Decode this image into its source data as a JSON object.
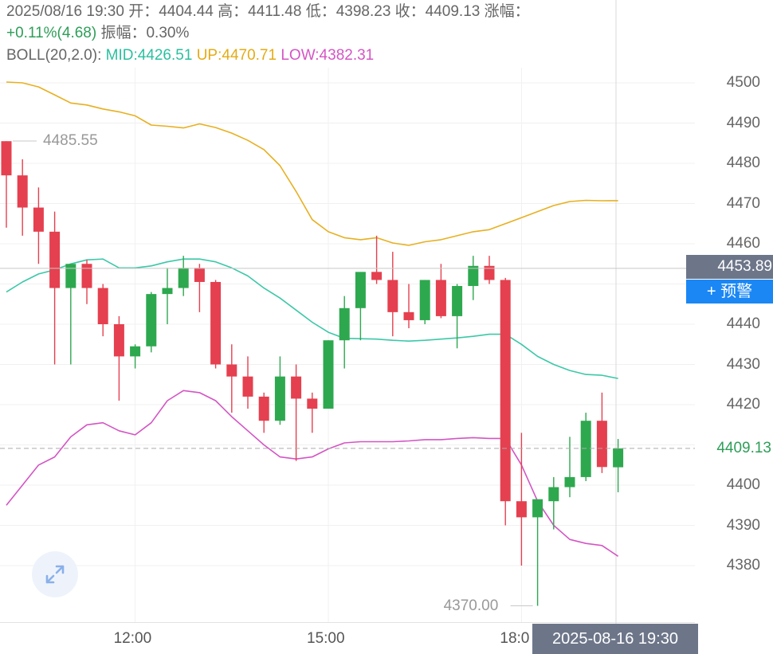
{
  "header": {
    "line1": "2025/08/16 19:30 开：4404.44 高：4411.48 低：4398.23 收：4409.13 涨幅：",
    "change": "+0.11%(4.68)",
    "amplitude": " 振幅：0.30%",
    "boll_label": "BOLL(20,2.0):",
    "boll_mid": "MID:4426.51",
    "boll_up": "UP:4470.71",
    "boll_low": "LOW:4382.31"
  },
  "overlay": {
    "crosshair_price": "4453.89",
    "alert_button": "+ 预警",
    "last_price": "4409.13",
    "crosshair_time": "2025-08-16 19:30",
    "max_label": "4485.55",
    "min_label": "4370.00"
  },
  "colors": {
    "up_candle": "#e5404f",
    "down_candle": "#2ea84f",
    "boll_mid": "#3cc8a8",
    "boll_up": "#e8b020",
    "boll_low": "#d455c4",
    "alert_button": "#1a87f5",
    "label_box": "#6d7689"
  },
  "icons": {
    "expand": "expand-arrows-icon"
  },
  "chart_data": {
    "type": "candlestick",
    "title": "",
    "xlabel": "",
    "ylabel": "",
    "ylim": [
      4370,
      4505
    ],
    "y_ticks": [
      4380,
      4390,
      4400,
      4410,
      4420,
      4430,
      4440,
      4450,
      4460,
      4470,
      4480,
      4490,
      4500
    ],
    "y_tick_labels": [
      "4380",
      "4390",
      "4400",
      "4420",
      "4430",
      "4440",
      "4460",
      "4470",
      "4480",
      "4490",
      "4500"
    ],
    "x_tick_labels": [
      {
        "index": 8,
        "label": "12:00"
      },
      {
        "index": 20,
        "label": "15:00"
      },
      {
        "index": 32,
        "label": "18:0"
      }
    ],
    "candles": [
      {
        "o": 4485.5,
        "h": 4485.5,
        "l": 4464.0,
        "c": 4477.0
      },
      {
        "o": 4477.0,
        "h": 4481.0,
        "l": 4462.0,
        "c": 4469.0
      },
      {
        "o": 4469.0,
        "h": 4474.0,
        "l": 4455.0,
        "c": 4463.0
      },
      {
        "o": 4463.0,
        "h": 4468.0,
        "l": 4430.0,
        "c": 4449.0
      },
      {
        "o": 4449.0,
        "h": 4455.0,
        "l": 4430.0,
        "c": 4455.0
      },
      {
        "o": 4455.0,
        "h": 4456.0,
        "l": 4445.0,
        "c": 4449.0
      },
      {
        "o": 4449.0,
        "h": 4450.0,
        "l": 4437.0,
        "c": 4440.0
      },
      {
        "o": 4440.0,
        "h": 4442.0,
        "l": 4421.0,
        "c": 4432.0
      },
      {
        "o": 4432.0,
        "h": 4435.0,
        "l": 4429.0,
        "c": 4434.5
      },
      {
        "o": 4434.5,
        "h": 4448.0,
        "l": 4433.0,
        "c": 4447.5
      },
      {
        "o": 4447.5,
        "h": 4454.0,
        "l": 4440.0,
        "c": 4449.0
      },
      {
        "o": 4449.0,
        "h": 4457.0,
        "l": 4447.0,
        "c": 4454.0
      },
      {
        "o": 4454.0,
        "h": 4455.0,
        "l": 4443.0,
        "c": 4450.5
      },
      {
        "o": 4450.5,
        "h": 4451.0,
        "l": 4429.0,
        "c": 4430.0
      },
      {
        "o": 4430.0,
        "h": 4435.0,
        "l": 4418.0,
        "c": 4427.0
      },
      {
        "o": 4427.0,
        "h": 4432.0,
        "l": 4419.0,
        "c": 4422.0
      },
      {
        "o": 4422.0,
        "h": 4423.0,
        "l": 4413.0,
        "c": 4416.0
      },
      {
        "o": 4416.0,
        "h": 4432.0,
        "l": 4415.0,
        "c": 4427.0
      },
      {
        "o": 4427.0,
        "h": 4430.0,
        "l": 4406.0,
        "c": 4421.5
      },
      {
        "o": 4421.5,
        "h": 4423.0,
        "l": 4413.0,
        "c": 4419.0
      },
      {
        "o": 4419.0,
        "h": 4436.0,
        "l": 4419.0,
        "c": 4436.0
      },
      {
        "o": 4436.0,
        "h": 4447.0,
        "l": 4429.0,
        "c": 4444.0
      },
      {
        "o": 4444.0,
        "h": 4452.0,
        "l": 4436.0,
        "c": 4453.0
      },
      {
        "o": 4453.0,
        "h": 4462.0,
        "l": 4450.0,
        "c": 4451.0
      },
      {
        "o": 4451.0,
        "h": 4458.0,
        "l": 4437.0,
        "c": 4443.0
      },
      {
        "o": 4443.0,
        "h": 4450.0,
        "l": 4439.0,
        "c": 4441.0
      },
      {
        "o": 4441.0,
        "h": 4451.0,
        "l": 4440.0,
        "c": 4451.0
      },
      {
        "o": 4451.0,
        "h": 4455.0,
        "l": 4441.5,
        "c": 4442.0
      },
      {
        "o": 4442.0,
        "h": 4450.0,
        "l": 4434.0,
        "c": 4449.5
      },
      {
        "o": 4449.5,
        "h": 4457.0,
        "l": 4446.0,
        "c": 4454.5
      },
      {
        "o": 4454.5,
        "h": 4457.0,
        "l": 4450.0,
        "c": 4451.0
      },
      {
        "o": 4451.0,
        "h": 4451.5,
        "l": 4390.0,
        "c": 4396.0
      },
      {
        "o": 4396.0,
        "h": 4413.0,
        "l": 4380.0,
        "c": 4392.0
      },
      {
        "o": 4392.0,
        "h": 4396.0,
        "l": 4370.0,
        "c": 4396.5
      },
      {
        "o": 4396.0,
        "h": 4402.0,
        "l": 4389.0,
        "c": 4399.5
      },
      {
        "o": 4399.5,
        "h": 4412.0,
        "l": 4397.0,
        "c": 4402.0
      },
      {
        "o": 4402.0,
        "h": 4418.0,
        "l": 4401.0,
        "c": 4416.0
      },
      {
        "o": 4416.0,
        "h": 4423.0,
        "l": 4403.0,
        "c": 4404.5
      },
      {
        "o": 4404.44,
        "h": 4411.48,
        "l": 4398.23,
        "c": 4409.13
      }
    ],
    "boll_up": [
      4500.2,
      4500.0,
      4499.0,
      4497.0,
      4495.0,
      4494.5,
      4493.5,
      4492.8,
      4491.8,
      4489.5,
      4489.2,
      4488.8,
      4489.8,
      4488.9,
      4487.5,
      4485.7,
      4483.4,
      4479.4,
      4473.0,
      4466.0,
      4463.0,
      4461.5,
      4461.0,
      4461.5,
      4460.2,
      4459.6,
      4460.5,
      4461.0,
      4462.0,
      4463.0,
      4463.5,
      4465.0,
      4466.5,
      4468.0,
      4469.5,
      4470.5,
      4470.8,
      4470.7,
      4470.71
    ],
    "boll_mid": [
      4448.0,
      4450.5,
      4452.5,
      4453.5,
      4455.0,
      4456.0,
      4456.2,
      4454.0,
      4454.0,
      4454.5,
      4455.5,
      4456.2,
      4456.2,
      4455.5,
      4454.0,
      4452.0,
      4449.0,
      4446.5,
      4443.5,
      4440.5,
      4438.0,
      4436.5,
      4436.4,
      4436.3,
      4436.0,
      4435.8,
      4436.0,
      4436.3,
      4436.6,
      4437.0,
      4437.5,
      4437.5,
      4435.0,
      4432.0,
      4430.0,
      4428.5,
      4427.5,
      4427.3,
      4426.51
    ],
    "boll_low": [
      4395.0,
      4400.0,
      4405.0,
      4407.0,
      4412.0,
      4415.0,
      4415.5,
      4413.5,
      4412.5,
      4415.5,
      4421.0,
      4423.5,
      4423.0,
      4421.0,
      4417.0,
      4413.5,
      4410.0,
      4407.0,
      4406.5,
      4407.0,
      4409.0,
      4410.5,
      4410.8,
      4410.8,
      4410.8,
      4411.0,
      4411.3,
      4411.3,
      4411.6,
      4411.8,
      4411.6,
      4411.6,
      4405.0,
      4396.0,
      4390.0,
      4386.5,
      4385.5,
      4385.0,
      4382.31
    ]
  }
}
